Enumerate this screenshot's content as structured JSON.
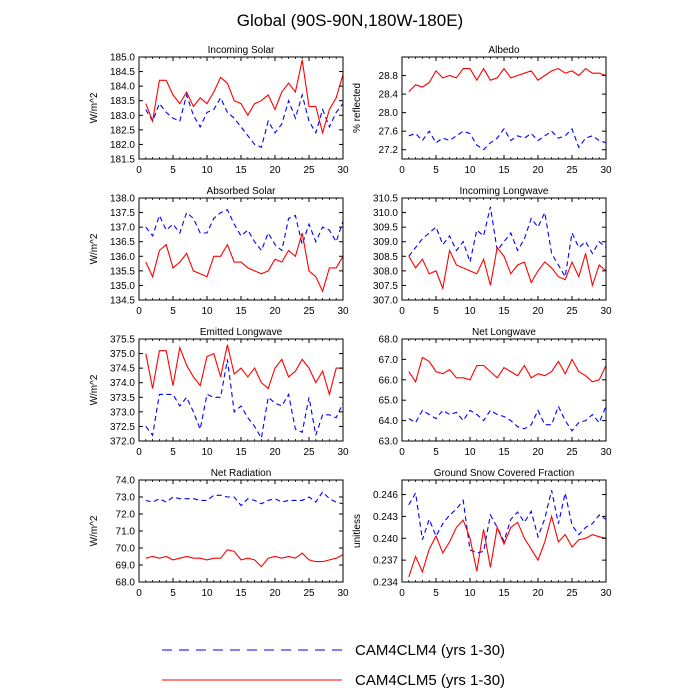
{
  "figure": {
    "title": "Global (90S-90N,180W-180E)",
    "legend": [
      {
        "label": "CAM4CLM4 (yrs 1-30)",
        "color": "#0000ff",
        "dash": "dashed"
      },
      {
        "label": "CAM4CLM5 (yrs 1-30)",
        "color": "#ff0000",
        "dash": "solid"
      }
    ]
  },
  "chart_data": [
    {
      "type": "line",
      "title": "Incoming Solar",
      "ylabel": "W/m^2",
      "xlabel": "",
      "xlim": [
        0,
        30
      ],
      "xticks": [
        0,
        5,
        10,
        15,
        20,
        25,
        30
      ],
      "ylim": [
        181.5,
        185.0
      ],
      "yticks": [
        181.5,
        182.0,
        182.5,
        183.0,
        183.5,
        184.0,
        184.5,
        185.0
      ],
      "ydec": 1,
      "x": [
        1,
        2,
        3,
        4,
        5,
        6,
        7,
        8,
        9,
        10,
        11,
        12,
        13,
        14,
        15,
        16,
        17,
        18,
        19,
        20,
        21,
        22,
        23,
        24,
        25,
        26,
        27,
        28,
        29,
        30
      ],
      "series": [
        {
          "name": "CAM4CLM4 (yrs 1-30)",
          "values": [
            183.2,
            182.8,
            183.4,
            183.1,
            182.9,
            182.8,
            183.7,
            183.0,
            182.6,
            183.1,
            183.2,
            183.6,
            183.1,
            182.9,
            182.6,
            182.3,
            182.0,
            181.9,
            182.8,
            182.4,
            182.7,
            183.5,
            182.9,
            183.7,
            182.8,
            182.4,
            183.2,
            182.6,
            183.1,
            183.4
          ]
        },
        {
          "name": "CAM4CLM5 (yrs 1-30)",
          "values": [
            183.4,
            182.8,
            184.2,
            184.2,
            183.7,
            183.4,
            183.8,
            183.3,
            183.6,
            183.4,
            183.8,
            184.3,
            184.1,
            183.5,
            183.4,
            183.0,
            183.4,
            183.5,
            183.7,
            183.2,
            183.8,
            184.1,
            183.8,
            184.9,
            183.3,
            183.3,
            182.4,
            183.2,
            183.6,
            184.4
          ]
        }
      ]
    },
    {
      "type": "line",
      "title": "Albedo",
      "ylabel": "% reflected",
      "xlabel": "",
      "xlim": [
        0,
        30
      ],
      "xticks": [
        0,
        5,
        10,
        15,
        20,
        25,
        30
      ],
      "ylim": [
        27.0,
        29.2
      ],
      "yticks": [
        27.2,
        27.6,
        28.0,
        28.4,
        28.8
      ],
      "ydec": 1,
      "x": [
        1,
        2,
        3,
        4,
        5,
        6,
        7,
        8,
        9,
        10,
        11,
        12,
        13,
        14,
        15,
        16,
        17,
        18,
        19,
        20,
        21,
        22,
        23,
        24,
        25,
        26,
        27,
        28,
        29,
        30
      ],
      "series": [
        {
          "name": "CAM4CLM4 (yrs 1-30)",
          "values": [
            27.5,
            27.55,
            27.4,
            27.6,
            27.35,
            27.45,
            27.4,
            27.5,
            27.6,
            27.55,
            27.3,
            27.2,
            27.35,
            27.45,
            27.65,
            27.4,
            27.5,
            27.45,
            27.55,
            27.4,
            27.5,
            27.6,
            27.45,
            27.5,
            27.65,
            27.25,
            27.45,
            27.5,
            27.4,
            27.35
          ]
        },
        {
          "name": "CAM4CLM5 (yrs 1-30)",
          "values": [
            28.45,
            28.6,
            28.55,
            28.65,
            28.9,
            28.75,
            28.8,
            28.75,
            28.95,
            28.95,
            28.7,
            28.95,
            28.7,
            28.75,
            28.95,
            28.75,
            28.8,
            28.85,
            28.9,
            28.7,
            28.8,
            28.9,
            28.95,
            28.85,
            28.9,
            28.8,
            28.95,
            28.85,
            28.85,
            28.8
          ]
        }
      ]
    },
    {
      "type": "line",
      "title": "Absorbed Solar",
      "ylabel": "W/m^2",
      "xlabel": "",
      "xlim": [
        0,
        30
      ],
      "xticks": [
        0,
        5,
        10,
        15,
        20,
        25,
        30
      ],
      "ylim": [
        134.5,
        138.0
      ],
      "yticks": [
        134.5,
        135.0,
        135.5,
        136.0,
        136.5,
        137.0,
        137.5,
        138.0
      ],
      "ydec": 1,
      "x": [
        1,
        2,
        3,
        4,
        5,
        6,
        7,
        8,
        9,
        10,
        11,
        12,
        13,
        14,
        15,
        16,
        17,
        18,
        19,
        20,
        21,
        22,
        23,
        24,
        25,
        26,
        27,
        28,
        29,
        30
      ],
      "series": [
        {
          "name": "CAM4CLM4 (yrs 1-30)",
          "values": [
            137.0,
            136.7,
            137.4,
            136.9,
            137.1,
            136.8,
            137.5,
            137.3,
            136.8,
            136.8,
            137.3,
            137.5,
            137.6,
            137.1,
            136.7,
            136.9,
            136.5,
            136.2,
            136.8,
            136.4,
            136.2,
            137.3,
            137.4,
            136.4,
            137.1,
            136.5,
            137.0,
            136.9,
            136.5,
            137.2
          ]
        },
        {
          "name": "CAM4CLM5 (yrs 1-30)",
          "values": [
            135.8,
            135.3,
            136.2,
            136.4,
            135.6,
            135.8,
            136.1,
            135.5,
            135.4,
            135.3,
            136.0,
            136.0,
            136.4,
            135.8,
            135.8,
            135.6,
            135.5,
            135.4,
            135.5,
            135.9,
            135.8,
            136.2,
            136.0,
            136.8,
            135.5,
            135.3,
            134.8,
            135.6,
            135.6,
            136.0
          ]
        }
      ]
    },
    {
      "type": "line",
      "title": "Incoming Longwave",
      "ylabel": "",
      "xlabel": "",
      "xlim": [
        0,
        30
      ],
      "xticks": [
        0,
        5,
        10,
        15,
        20,
        25,
        30
      ],
      "ylim": [
        307.0,
        310.5
      ],
      "yticks": [
        307.0,
        307.5,
        308.0,
        308.5,
        309.0,
        309.5,
        310.0,
        310.5
      ],
      "ydec": 1,
      "x": [
        1,
        2,
        3,
        4,
        5,
        6,
        7,
        8,
        9,
        10,
        11,
        12,
        13,
        14,
        15,
        16,
        17,
        18,
        19,
        20,
        21,
        22,
        23,
        24,
        25,
        26,
        27,
        28,
        29,
        30
      ],
      "series": [
        {
          "name": "CAM4CLM4 (yrs 1-30)",
          "values": [
            308.5,
            308.8,
            309.1,
            309.3,
            309.5,
            308.9,
            309.2,
            308.7,
            309.0,
            308.3,
            309.4,
            309.2,
            310.2,
            308.7,
            309.0,
            309.3,
            308.7,
            309.1,
            309.8,
            309.5,
            310.0,
            308.6,
            308.2,
            307.8,
            309.3,
            308.8,
            309.0,
            308.6,
            309.0,
            308.8
          ]
        },
        {
          "name": "CAM4CLM5 (yrs 1-30)",
          "values": [
            308.5,
            308.1,
            308.4,
            307.9,
            308.0,
            307.4,
            308.7,
            308.2,
            308.1,
            308.0,
            307.9,
            308.4,
            307.5,
            308.8,
            308.5,
            307.9,
            308.2,
            308.3,
            307.6,
            308.0,
            308.3,
            308.1,
            307.8,
            307.7,
            308.3,
            307.8,
            308.6,
            307.5,
            308.2,
            308.0
          ]
        }
      ]
    },
    {
      "type": "line",
      "title": "Emitted Longwave",
      "ylabel": "W/m^2",
      "xlabel": "",
      "xlim": [
        0,
        30
      ],
      "xticks": [
        0,
        5,
        10,
        15,
        20,
        25,
        30
      ],
      "ylim": [
        372.0,
        375.5
      ],
      "yticks": [
        372.0,
        372.5,
        373.0,
        373.5,
        374.0,
        374.5,
        375.0,
        375.5
      ],
      "ydec": 1,
      "x": [
        1,
        2,
        3,
        4,
        5,
        6,
        7,
        8,
        9,
        10,
        11,
        12,
        13,
        14,
        15,
        16,
        17,
        18,
        19,
        20,
        21,
        22,
        23,
        24,
        25,
        26,
        27,
        28,
        29,
        30
      ],
      "series": [
        {
          "name": "CAM4CLM4 (yrs 1-30)",
          "values": [
            372.5,
            372.2,
            373.6,
            373.6,
            373.6,
            373.2,
            373.5,
            373.0,
            372.4,
            373.6,
            373.5,
            373.5,
            374.8,
            373.0,
            373.2,
            372.8,
            372.5,
            372.1,
            373.5,
            373.3,
            373.2,
            373.6,
            372.4,
            372.3,
            373.5,
            372.2,
            372.9,
            372.9,
            372.8,
            373.3
          ]
        },
        {
          "name": "CAM4CLM5 (yrs 1-30)",
          "values": [
            375.0,
            373.8,
            375.1,
            375.1,
            373.9,
            375.2,
            374.6,
            374.2,
            373.9,
            374.9,
            375.0,
            374.2,
            375.3,
            374.3,
            374.5,
            374.2,
            374.5,
            374.0,
            373.8,
            374.5,
            374.8,
            374.2,
            374.4,
            374.8,
            374.5,
            374.0,
            374.4,
            373.6,
            374.5,
            374.5
          ]
        }
      ]
    },
    {
      "type": "line",
      "title": "Net Longwave",
      "ylabel": "",
      "xlabel": "",
      "xlim": [
        0,
        30
      ],
      "xticks": [
        0,
        5,
        10,
        15,
        20,
        25,
        30
      ],
      "ylim": [
        63.0,
        68.0
      ],
      "yticks": [
        63.0,
        64.0,
        65.0,
        66.0,
        67.0,
        68.0
      ],
      "ydec": 1,
      "x": [
        1,
        2,
        3,
        4,
        5,
        6,
        7,
        8,
        9,
        10,
        11,
        12,
        13,
        14,
        15,
        16,
        17,
        18,
        19,
        20,
        21,
        22,
        23,
        24,
        25,
        26,
        27,
        28,
        29,
        30
      ],
      "series": [
        {
          "name": "CAM4CLM4 (yrs 1-30)",
          "values": [
            64.1,
            63.9,
            64.5,
            64.3,
            64.1,
            64.5,
            64.3,
            64.4,
            64.0,
            64.5,
            64.3,
            64.0,
            64.5,
            64.3,
            64.2,
            64.0,
            63.7,
            63.6,
            63.8,
            64.5,
            63.8,
            63.8,
            64.7,
            64.0,
            63.5,
            63.9,
            64.0,
            64.3,
            63.9,
            64.7
          ]
        },
        {
          "name": "CAM4CLM5 (yrs 1-30)",
          "values": [
            66.4,
            65.9,
            67.1,
            66.9,
            66.4,
            66.3,
            66.5,
            66.1,
            66.1,
            66.0,
            66.7,
            66.7,
            66.4,
            66.1,
            66.6,
            66.4,
            66.2,
            66.7,
            66.1,
            66.3,
            66.2,
            66.4,
            66.9,
            66.3,
            67.0,
            66.4,
            66.2,
            65.9,
            66.0,
            66.7
          ]
        }
      ]
    },
    {
      "type": "line",
      "title": "Net Radiation",
      "ylabel": "W/m^2",
      "xlabel": "",
      "xlim": [
        0,
        30
      ],
      "xticks": [
        0,
        5,
        10,
        15,
        20,
        25,
        30
      ],
      "ylim": [
        68.0,
        74.0
      ],
      "yticks": [
        68.0,
        69.0,
        70.0,
        71.0,
        72.0,
        73.0,
        74.0
      ],
      "ydec": 1,
      "x": [
        1,
        2,
        3,
        4,
        5,
        6,
        7,
        8,
        9,
        10,
        11,
        12,
        13,
        14,
        15,
        16,
        17,
        18,
        19,
        20,
        21,
        22,
        23,
        24,
        25,
        26,
        27,
        28,
        29,
        30
      ],
      "series": [
        {
          "name": "CAM4CLM4 (yrs 1-30)",
          "values": [
            72.8,
            72.7,
            72.9,
            72.7,
            73.0,
            72.9,
            72.9,
            72.9,
            72.8,
            72.8,
            73.1,
            73.1,
            73.0,
            73.0,
            72.5,
            72.9,
            72.8,
            72.6,
            72.8,
            72.9,
            72.7,
            72.8,
            72.8,
            72.8,
            73.0,
            72.7,
            73.3,
            72.9,
            72.7,
            72.6
          ]
        },
        {
          "name": "CAM4CLM5 (yrs 1-30)",
          "values": [
            69.4,
            69.5,
            69.4,
            69.5,
            69.3,
            69.4,
            69.5,
            69.4,
            69.4,
            69.3,
            69.4,
            69.4,
            69.9,
            69.8,
            69.3,
            69.4,
            69.3,
            68.9,
            69.4,
            69.5,
            69.4,
            69.5,
            69.4,
            69.7,
            69.3,
            69.2,
            69.2,
            69.3,
            69.4,
            69.6
          ]
        }
      ]
    },
    {
      "type": "line",
      "title": "Ground Snow Covered Fraction",
      "ylabel": "unitless",
      "xlabel": "",
      "xlim": [
        0,
        30
      ],
      "xticks": [
        0,
        5,
        10,
        15,
        20,
        25,
        30
      ],
      "ylim": [
        0.234,
        0.248
      ],
      "yticks": [
        0.234,
        0.237,
        0.24,
        0.243,
        0.246
      ],
      "ydec": 3,
      "x": [
        1,
        2,
        3,
        4,
        5,
        6,
        7,
        8,
        9,
        10,
        11,
        12,
        13,
        14,
        15,
        16,
        17,
        18,
        19,
        20,
        21,
        22,
        23,
        24,
        25,
        26,
        27,
        28,
        29,
        30
      ],
      "series": [
        {
          "name": "CAM4CLM4 (yrs 1-30)",
          "values": [
            0.2446,
            0.2462,
            0.2398,
            0.2426,
            0.2403,
            0.242,
            0.2432,
            0.244,
            0.2452,
            0.2384,
            0.238,
            0.2382,
            0.2432,
            0.2415,
            0.2396,
            0.2426,
            0.2436,
            0.2422,
            0.2437,
            0.2402,
            0.2427,
            0.2466,
            0.242,
            0.2462,
            0.2418,
            0.2405,
            0.2415,
            0.242,
            0.2432,
            0.2426
          ]
        },
        {
          "name": "CAM4CLM5 (yrs 1-30)",
          "values": [
            0.2347,
            0.2375,
            0.2354,
            0.2385,
            0.2403,
            0.238,
            0.2395,
            0.2415,
            0.2425,
            0.24,
            0.2355,
            0.2412,
            0.236,
            0.2415,
            0.2392,
            0.2415,
            0.2422,
            0.24,
            0.2385,
            0.237,
            0.2395,
            0.243,
            0.2395,
            0.2405,
            0.2388,
            0.2398,
            0.24,
            0.2405,
            0.2402,
            0.24
          ]
        }
      ]
    }
  ]
}
